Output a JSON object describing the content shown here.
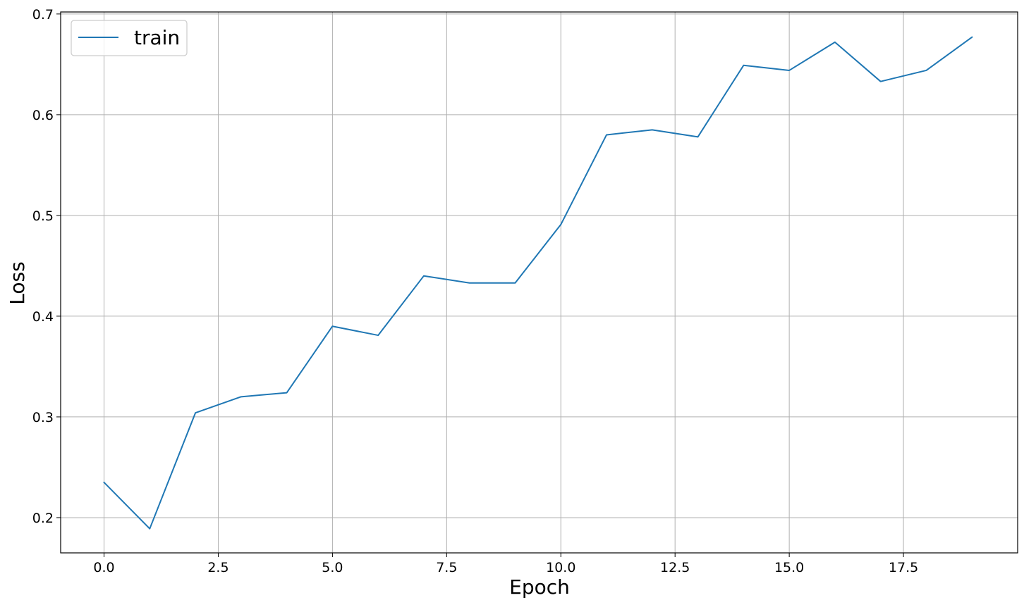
{
  "chart_data": {
    "type": "line",
    "xlabel": "Epoch",
    "ylabel": "Loss",
    "xlim": [
      -0.95,
      20.0
    ],
    "ylim": [
      0.165,
      0.702
    ],
    "x_ticks": [
      0.0,
      2.5,
      5.0,
      7.5,
      10.0,
      12.5,
      15.0,
      17.5
    ],
    "x_tick_labels": [
      "0.0",
      "2.5",
      "5.0",
      "7.5",
      "10.0",
      "12.5",
      "15.0",
      "17.5"
    ],
    "y_ticks": [
      0.2,
      0.3,
      0.4,
      0.5,
      0.6,
      0.7
    ],
    "y_tick_labels": [
      "0.2",
      "0.3",
      "0.4",
      "0.5",
      "0.6",
      "0.7"
    ],
    "grid": true,
    "legend_position": "top-left",
    "series": [
      {
        "name": "train",
        "color": "#1f77b4",
        "x": [
          0,
          1,
          2,
          3,
          4,
          5,
          6,
          7,
          8,
          9,
          10,
          11,
          12,
          13,
          14,
          15,
          16,
          17,
          18,
          19
        ],
        "y": [
          0.235,
          0.189,
          0.304,
          0.32,
          0.324,
          0.39,
          0.381,
          0.44,
          0.433,
          0.433,
          0.491,
          0.58,
          0.585,
          0.578,
          0.649,
          0.644,
          0.672,
          0.633,
          0.644,
          0.677
        ]
      }
    ]
  }
}
